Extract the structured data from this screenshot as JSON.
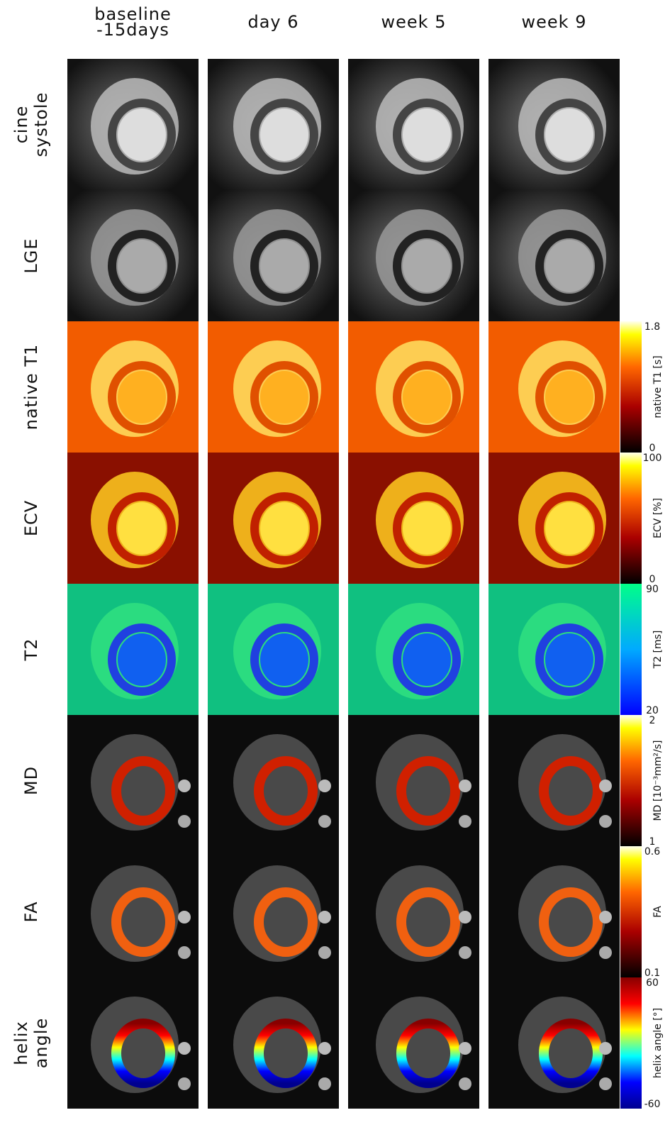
{
  "columns": [
    [
      "baseline",
      "-15days"
    ],
    [
      "day 6"
    ],
    [
      "week 5"
    ],
    [
      "week 9"
    ]
  ],
  "rows": [
    {
      "label": [
        "cine",
        "systole"
      ]
    },
    {
      "label": [
        "LGE"
      ]
    },
    {
      "label": [
        "native T1"
      ],
      "colorbar": {
        "title": "native T1 [s]",
        "max": "1.8",
        "min": "0"
      }
    },
    {
      "label": [
        "ECV"
      ],
      "colorbar": {
        "title": "ECV [%]",
        "max": "100",
        "min": "0"
      }
    },
    {
      "label": [
        "T2"
      ],
      "colorbar": {
        "title": "T2 [ms]",
        "max": "90",
        "min": "20"
      }
    },
    {
      "label": [
        "MD"
      ],
      "colorbar": {
        "title": "MD [10⁻³mm²/s]",
        "max": "2",
        "min": "1"
      }
    },
    {
      "label": [
        "FA"
      ],
      "colorbar": {
        "title": "FA",
        "max": "0.6",
        "min": "0.1"
      }
    },
    {
      "label": [
        "helix",
        "angle"
      ],
      "colorbar": {
        "title": "helix angle [°]",
        "max": "60",
        "min": "-60"
      }
    }
  ]
}
